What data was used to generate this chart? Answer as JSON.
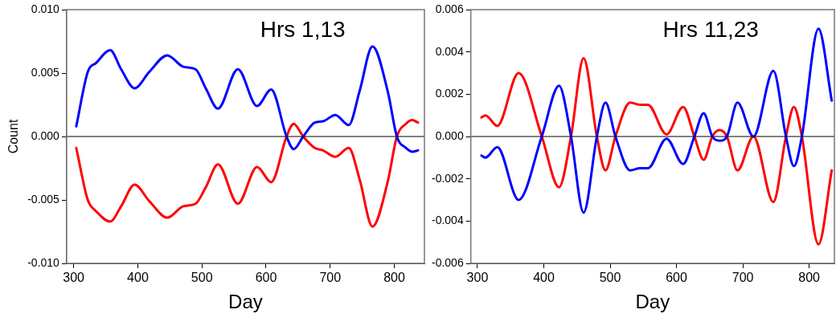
{
  "chart_data": [
    {
      "type": "line",
      "title": "Hrs 1,13",
      "xlabel": "Day",
      "ylabel": "Count",
      "xlim": [
        289,
        847
      ],
      "xticks": [
        300,
        400,
        500,
        600,
        700,
        800
      ],
      "ylim": [
        -0.01,
        0.01
      ],
      "yticks": [
        {
          "value": -0.01,
          "label": "-0.010"
        },
        {
          "value": -0.005,
          "label": "-0.005"
        },
        {
          "value": 0,
          "label": "0.000"
        },
        {
          "value": 0.005,
          "label": "0.005"
        },
        {
          "value": 0.01,
          "label": "0.010"
        }
      ],
      "marker": "none",
      "line_style": "solid",
      "ref_lines": [
        {
          "axis": "y",
          "value": 0,
          "color": "#000000"
        }
      ],
      "x": [
        304,
        322,
        335,
        357,
        374,
        395,
        418,
        446,
        471,
        490,
        506,
        525,
        556,
        586,
        608,
        632,
        643,
        658,
        676,
        689,
        708,
        729,
        746,
        766,
        790,
        804,
        818,
        828,
        837
      ],
      "series": [
        {
          "color": "#0000ff",
          "values": [
            0.0008,
            0.0051,
            0.0058,
            0.0068,
            0.0053,
            0.0038,
            0.0051,
            0.0064,
            0.0055,
            0.0053,
            0.0038,
            0.0022,
            0.0053,
            0.0024,
            0.0037,
            0,
            -0.001,
            0,
            0.0011,
            0.0012,
            0.0017,
            0.0009,
            0.0036,
            0.0071,
            0.0035,
            0,
            -0.0009,
            -0.0012,
            -0.0011
          ]
        },
        {
          "color": "#ff0000",
          "values": [
            -0.0009,
            -0.005,
            -0.0059,
            -0.0067,
            -0.0055,
            -0.0038,
            -0.0051,
            -0.0064,
            -0.0055,
            -0.0053,
            -0.004,
            -0.0022,
            -0.0053,
            -0.0024,
            -0.0036,
            0,
            0.001,
            0,
            -0.0009,
            -0.0011,
            -0.0016,
            -0.0009,
            -0.0034,
            -0.0071,
            -0.0035,
            0,
            0.001,
            0.0013,
            0.0011
          ]
        }
      ]
    },
    {
      "type": "line",
      "title": "Hrs 11,23",
      "xlabel": "Day",
      "xlim": [
        290,
        838
      ],
      "xticks": [
        300,
        400,
        500,
        600,
        700,
        800
      ],
      "ylim": [
        -0.006,
        0.006
      ],
      "yticks": [
        {
          "value": -0.006,
          "label": "-0.006"
        },
        {
          "value": -0.004,
          "label": "-0.004"
        },
        {
          "value": -0.002,
          "label": "-0.002"
        },
        {
          "value": 0,
          "label": "0.000"
        },
        {
          "value": 0.002,
          "label": "0.002"
        },
        {
          "value": 0.004,
          "label": "0.004"
        },
        {
          "value": 0.006,
          "label": "0.006"
        }
      ],
      "marker": "none",
      "line_style": "solid",
      "ref_lines": [
        {
          "axis": "y",
          "value": 0,
          "color": "#000000"
        }
      ],
      "x": [
        306,
        312,
        330,
        362,
        397,
        423,
        441,
        460,
        480,
        493,
        508,
        530,
        545,
        557,
        585,
        610,
        627,
        641,
        654,
        665,
        676,
        692,
        716,
        746,
        765,
        777,
        789,
        814,
        834
      ],
      "series": [
        {
          "color": "#0000ff",
          "values": [
            -0.0009,
            -0.001,
            -0.0005,
            -0.003,
            0,
            0.0024,
            0,
            -0.0036,
            0,
            0.0016,
            0,
            -0.0016,
            -0.0015,
            -0.0015,
            -0.0001,
            -0.0013,
            0,
            0.0011,
            0,
            -0.0002,
            0,
            0.0016,
            0,
            0.0031,
            0,
            -0.0014,
            0,
            0.0051,
            0.0017
          ]
        },
        {
          "color": "#ff0000",
          "values": [
            0.0009,
            0.001,
            0.0005,
            0.003,
            0,
            -0.0024,
            0,
            0.0037,
            0,
            -0.0016,
            0,
            0.0016,
            0.0015,
            0.0015,
            0.0001,
            0.0014,
            0,
            -0.0011,
            0,
            0.0003,
            0,
            -0.0016,
            0,
            -0.0031,
            0,
            0.0014,
            0,
            -0.0051,
            -0.0016
          ]
        }
      ]
    }
  ]
}
